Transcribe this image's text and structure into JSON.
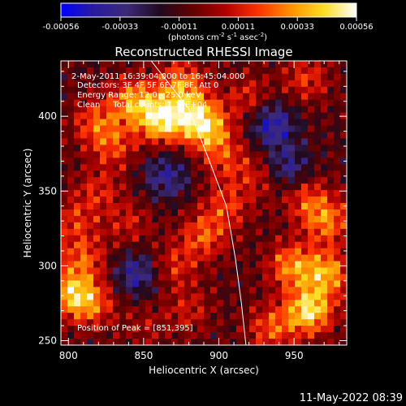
{
  "colorbar": {
    "ticks": [
      "-0.00056",
      "-0.00033",
      "-0.00011",
      "0.00011",
      "0.00033",
      "0.00056"
    ],
    "units_prefix": "(photons cm",
    "units_exp1": "-2",
    "units_mid1": " s",
    "units_exp2": "-1",
    "units_mid2": " asec",
    "units_exp3": "-2",
    "units_suffix": ")"
  },
  "annotations": {
    "time": "2-May-2011 16:39:04.000 to 16:45:04.000",
    "detectors": "Detectors: 3F 4F 5F 6F 7F 8F, Att 0",
    "energy": "Energy Range: 12.0 - 25.0 keV",
    "clean": "Clean     Total counts: 1.12E+04",
    "peak": "Position of Peak = [851,395]"
  },
  "footer": {
    "timestamp": "11-May-2022 08:39"
  },
  "chart_data": {
    "type": "heatmap",
    "title": "Reconstructed RHESSI Image",
    "xlabel": "Heliocentric X (arcsec)",
    "ylabel": "Heliocentric Y (arcsec)",
    "xlim": [
      795,
      985
    ],
    "ylim": [
      247,
      437
    ],
    "xticks": [
      "800",
      "850",
      "900",
      "950"
    ],
    "yticks": [
      "250",
      "300",
      "350",
      "400"
    ],
    "clim": [
      -0.00056,
      0.00056
    ],
    "colormap": [
      "#0000ff",
      "#2a1aa0",
      "#3c2a78",
      "#200a20",
      "#600000",
      "#b00000",
      "#ff3000",
      "#ff9000",
      "#ffdd20",
      "#ffffff"
    ],
    "peak_position": [
      851,
      395
    ],
    "sources": [
      {
        "x": 862,
        "y": 398,
        "value": 0.00056
      },
      {
        "x": 885,
        "y": 400,
        "value": 0.00045
      },
      {
        "x": 843,
        "y": 410,
        "value": 0.0004
      },
      {
        "x": 875,
        "y": 422,
        "value": 0.00035
      },
      {
        "x": 895,
        "y": 388,
        "value": 0.00032
      },
      {
        "x": 818,
        "y": 396,
        "value": 0.00028
      },
      {
        "x": 830,
        "y": 380,
        "value": 0.00025
      },
      {
        "x": 920,
        "y": 412,
        "value": 0.00022
      },
      {
        "x": 958,
        "y": 425,
        "value": 0.00024
      },
      {
        "x": 905,
        "y": 370,
        "value": 0.0002
      },
      {
        "x": 960,
        "y": 270,
        "value": 0.00055
      },
      {
        "x": 972,
        "y": 295,
        "value": 0.00042
      },
      {
        "x": 948,
        "y": 300,
        "value": 0.00038
      },
      {
        "x": 935,
        "y": 258,
        "value": 0.0003
      },
      {
        "x": 972,
        "y": 330,
        "value": 0.00035
      },
      {
        "x": 958,
        "y": 345,
        "value": 0.00026
      },
      {
        "x": 800,
        "y": 282,
        "value": 0.0004
      },
      {
        "x": 815,
        "y": 275,
        "value": 0.00033
      },
      {
        "x": 810,
        "y": 305,
        "value": 0.00028
      },
      {
        "x": 803,
        "y": 330,
        "value": 0.00022
      },
      {
        "x": 890,
        "y": 320,
        "value": 0.0003
      },
      {
        "x": 870,
        "y": 300,
        "value": 0.00022
      },
      {
        "x": 905,
        "y": 340,
        "value": 0.00024
      },
      {
        "x": 928,
        "y": 360,
        "value": 0.0002
      },
      {
        "x": 840,
        "y": 328,
        "value": 0.00018
      },
      {
        "x": 880,
        "y": 270,
        "value": 0.00018
      },
      {
        "x": 850,
        "y": 260,
        "value": 0.00012
      },
      {
        "x": 820,
        "y": 350,
        "value": 0.0002
      },
      {
        "x": 845,
        "y": 295,
        "value": -0.0003
      },
      {
        "x": 935,
        "y": 395,
        "value": -0.00035
      },
      {
        "x": 865,
        "y": 360,
        "value": -0.00028
      },
      {
        "x": 945,
        "y": 365,
        "value": -0.0003
      }
    ],
    "limb_curve": [
      [
        855,
        437
      ],
      [
        880,
        405
      ],
      [
        893,
        372
      ],
      [
        905,
        340
      ],
      [
        911,
        305
      ],
      [
        915,
        275
      ],
      [
        918,
        247
      ]
    ]
  }
}
